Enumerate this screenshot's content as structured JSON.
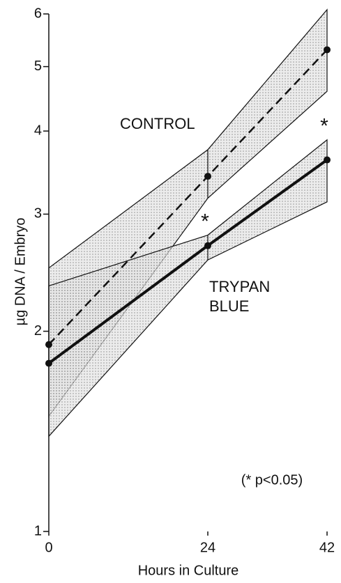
{
  "chart_data": {
    "type": "line",
    "xlabel": "Hours in Culture",
    "ylabel": "µg DNA / Embryo",
    "x": [
      0,
      24,
      42
    ],
    "series": [
      {
        "name": "CONTROL",
        "color": "#111111",
        "dash": true,
        "values": [
          1.91,
          3.42,
          5.3
        ],
        "upper": [
          2.49,
          3.75,
          6.09
        ],
        "lower": [
          1.49,
          3.17,
          4.59
        ]
      },
      {
        "name": "TRYPAN BLUE",
        "color": "#111111",
        "dash": false,
        "values": [
          1.79,
          2.69,
          3.62
        ],
        "upper": [
          2.34,
          2.79,
          3.88
        ],
        "lower": [
          1.39,
          2.56,
          3.13
        ]
      }
    ],
    "annotations": [
      "*",
      "*",
      "(* p<0.05)"
    ],
    "xlim": [
      0,
      42
    ],
    "xticks": [
      0,
      24,
      42
    ],
    "ylim": [
      1,
      6
    ],
    "yticks": [
      1,
      2,
      3,
      4,
      5,
      6
    ],
    "log_y": true,
    "grid": false
  }
}
